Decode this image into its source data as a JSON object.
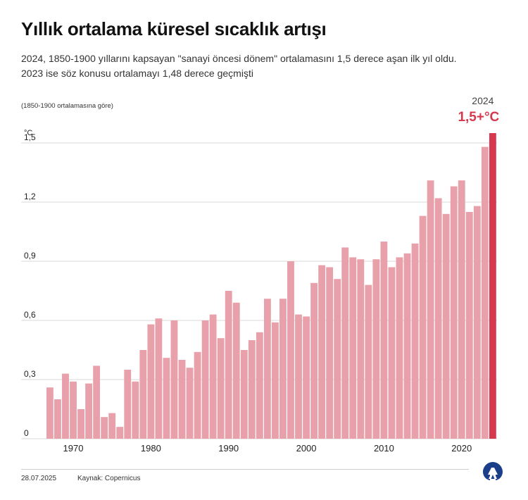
{
  "title": "Yıllık ortalama küresel sıcaklık artışı",
  "subtitle_lines": [
    "2024, 1850-1900 yıllarını kapsayan \"sanayi öncesi dönem\" ortalamasını 1,5 derece aşan ilk yıl oldu.",
    "2023 ise söz konusu ortalamayı 1,48 derece geçmişti"
  ],
  "footer": {
    "date": "28.07.2025",
    "source": "Kaynak: Copernicus"
  },
  "logo": "aa-logo-icon",
  "colors": {
    "bar": "#e8a0aa",
    "highlight_bar": "#d6384e",
    "highlight_text": "#d6384e",
    "grid": "#d9d9d9"
  },
  "chart_data": {
    "type": "bar",
    "title": "",
    "note": "(1850-1900 ortalamasına göre)",
    "unit_label": "°C",
    "x": [
      1967,
      1968,
      1969,
      1970,
      1971,
      1972,
      1973,
      1974,
      1975,
      1976,
      1977,
      1978,
      1979,
      1980,
      1981,
      1982,
      1983,
      1984,
      1985,
      1986,
      1987,
      1988,
      1989,
      1990,
      1991,
      1992,
      1993,
      1994,
      1995,
      1996,
      1997,
      1998,
      1999,
      2000,
      2001,
      2002,
      2003,
      2004,
      2005,
      2006,
      2007,
      2008,
      2009,
      2010,
      2011,
      2012,
      2013,
      2014,
      2015,
      2016,
      2017,
      2018,
      2019,
      2020,
      2021,
      2022,
      2023,
      2024
    ],
    "values": [
      0.26,
      0.2,
      0.33,
      0.29,
      0.15,
      0.28,
      0.37,
      0.11,
      0.13,
      0.06,
      0.35,
      0.29,
      0.45,
      0.58,
      0.61,
      0.41,
      0.6,
      0.4,
      0.36,
      0.44,
      0.6,
      0.63,
      0.51,
      0.75,
      0.69,
      0.45,
      0.5,
      0.54,
      0.71,
      0.59,
      0.71,
      0.9,
      0.63,
      0.62,
      0.79,
      0.88,
      0.87,
      0.81,
      0.97,
      0.92,
      0.91,
      0.78,
      0.91,
      1.0,
      0.87,
      0.92,
      0.94,
      0.99,
      1.13,
      1.31,
      1.22,
      1.14,
      1.28,
      1.31,
      1.15,
      1.18,
      1.48,
      1.55
    ],
    "x_ticks": [
      "1970",
      "1980",
      "1990",
      "2000",
      "2010",
      "2020"
    ],
    "y_ticks": [
      "0",
      "0,3",
      "0,6",
      "0,9",
      "1,2",
      "1,5"
    ],
    "y_tick_values": [
      0,
      0.3,
      0.6,
      0.9,
      1.2,
      1.5
    ],
    "ylim": [
      0,
      1.5
    ],
    "grid": true,
    "highlight": {
      "year_label": "2024",
      "value_label": "1,5+°C"
    }
  }
}
